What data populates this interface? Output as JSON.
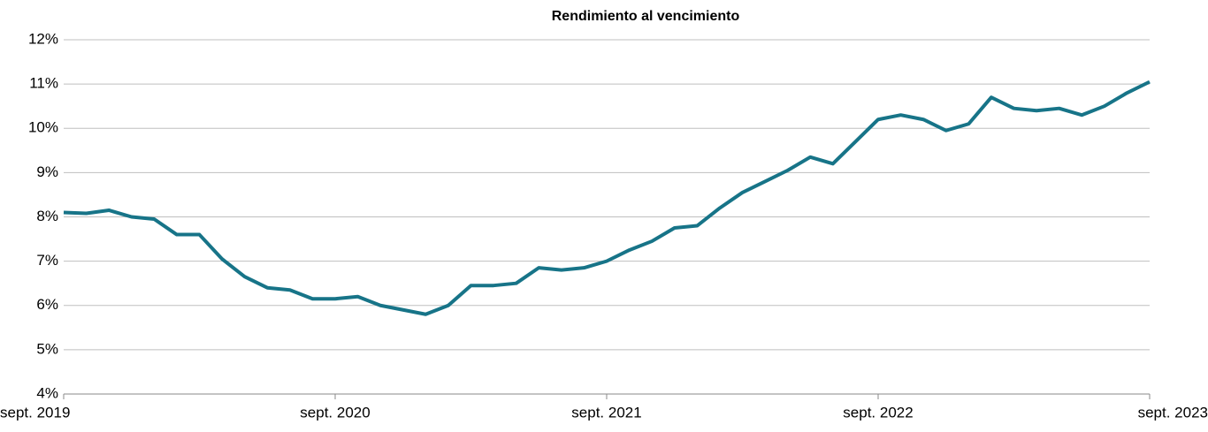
{
  "chart_data": {
    "type": "line",
    "title": "Rendimiento al vencimiento",
    "x": [
      "2019-09",
      "2019-10",
      "2019-11",
      "2019-12",
      "2020-01",
      "2020-02",
      "2020-03",
      "2020-04",
      "2020-05",
      "2020-06",
      "2020-07",
      "2020-08",
      "2020-09",
      "2020-10",
      "2020-11",
      "2020-12",
      "2021-01",
      "2021-02",
      "2021-03",
      "2021-04",
      "2021-05",
      "2021-06",
      "2021-07",
      "2021-08",
      "2021-09",
      "2021-10",
      "2021-11",
      "2021-12",
      "2022-01",
      "2022-02",
      "2022-03",
      "2022-04",
      "2022-05",
      "2022-06",
      "2022-07",
      "2022-08",
      "2022-09",
      "2022-10",
      "2022-11",
      "2022-12",
      "2023-01",
      "2023-02",
      "2023-03",
      "2023-04",
      "2023-05",
      "2023-06",
      "2023-07",
      "2023-08",
      "2023-09"
    ],
    "series": [
      {
        "name": "Rendimiento al vencimiento",
        "color": "#177488",
        "values": [
          8.1,
          8.08,
          8.15,
          8.0,
          7.95,
          7.6,
          7.6,
          7.05,
          6.65,
          6.4,
          6.35,
          6.15,
          6.15,
          6.2,
          6.0,
          5.9,
          5.8,
          6.0,
          6.45,
          6.45,
          6.5,
          6.85,
          6.8,
          6.85,
          7.0,
          7.25,
          7.45,
          7.75,
          7.8,
          8.2,
          8.55,
          8.8,
          9.05,
          9.35,
          9.2,
          9.7,
          10.2,
          10.3,
          10.2,
          9.95,
          10.1,
          10.7,
          10.45,
          10.4,
          10.45,
          10.3,
          10.5,
          10.8,
          11.05
        ]
      }
    ],
    "xticks": [
      {
        "value": "2019-09",
        "label": "sept. 2019"
      },
      {
        "value": "2020-09",
        "label": "sept. 2020"
      },
      {
        "value": "2021-09",
        "label": "sept. 2021"
      },
      {
        "value": "2022-09",
        "label": "sept. 2022"
      },
      {
        "value": "2023-09",
        "label": "sept. 2023"
      }
    ],
    "xlim": [
      "2019-09",
      "2023-09"
    ],
    "ylim": [
      4,
      12
    ],
    "yticks": [
      {
        "value": 4,
        "label": "4%"
      },
      {
        "value": 5,
        "label": "5%"
      },
      {
        "value": 6,
        "label": "6%"
      },
      {
        "value": 7,
        "label": "7%"
      },
      {
        "value": 8,
        "label": "8%"
      },
      {
        "value": 9,
        "label": "9%"
      },
      {
        "value": 10,
        "label": "10%"
      },
      {
        "value": 11,
        "label": "11%"
      },
      {
        "value": 12,
        "label": "12%"
      }
    ],
    "grid": true
  }
}
